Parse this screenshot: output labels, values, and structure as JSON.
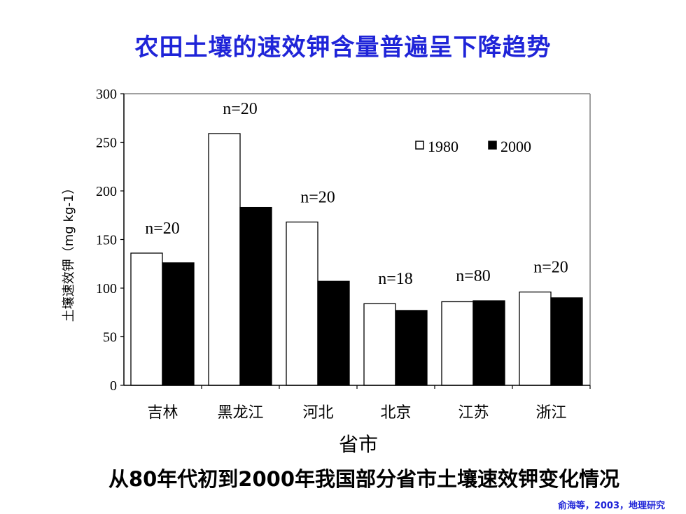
{
  "page": {
    "title": "农田土壤的速效钾含量普遍呈下降趋势",
    "caption": "从80年代初到2000年我国部分省市土壤速效钾变化情况",
    "source": "俞海等，2003，地理研究"
  },
  "chart_data": {
    "type": "bar",
    "title": "",
    "xlabel": "省市",
    "ylabel": "土壤速效钾（mg kg-1）",
    "ylim": [
      0,
      300
    ],
    "yticks": [
      0,
      50,
      100,
      150,
      200,
      250,
      300
    ],
    "categories": [
      "吉林",
      "黑龙江",
      "河北",
      "北京",
      "江苏",
      "浙江"
    ],
    "series": [
      {
        "name": "1980",
        "color": "#ffffff",
        "values": [
          136,
          259,
          168,
          84,
          86,
          96
        ]
      },
      {
        "name": "2000",
        "color": "#000000",
        "values": [
          126,
          183,
          107,
          77,
          87,
          90
        ]
      }
    ],
    "annotations": [
      "n=20",
      "n=20",
      "n=20",
      "n=18",
      "n=80",
      "n=20"
    ],
    "legend_position": "top-right",
    "grid": false
  }
}
